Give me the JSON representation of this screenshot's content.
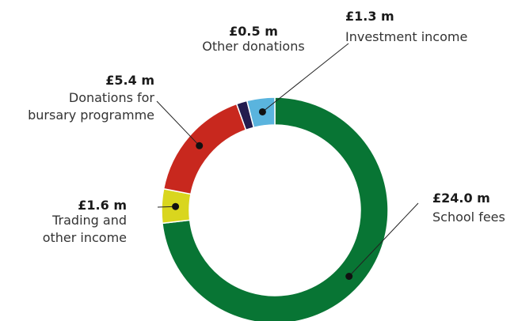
{
  "chart_data": {
    "type": "pie",
    "style": "donut",
    "units": "£ m",
    "slices": [
      {
        "label": [
          "School fees"
        ],
        "value": 24.0,
        "value_label": "£24.0 m",
        "color": "#087534"
      },
      {
        "label": [
          "Trading and",
          "other income"
        ],
        "value": 1.6,
        "value_label": "£1.6 m",
        "color": "#d9d61e"
      },
      {
        "label": [
          "Donations for",
          "bursary programme"
        ],
        "value": 5.4,
        "value_label": "£5.4 m",
        "color": "#c8281e"
      },
      {
        "label": [
          "Other donations"
        ],
        "value": 0.5,
        "value_label": "£0.5 m",
        "color": "#231c4e"
      },
      {
        "label": [
          "Investment income"
        ],
        "value": 1.3,
        "value_label": "£1.3 m",
        "color": "#5ab4de"
      }
    ]
  }
}
